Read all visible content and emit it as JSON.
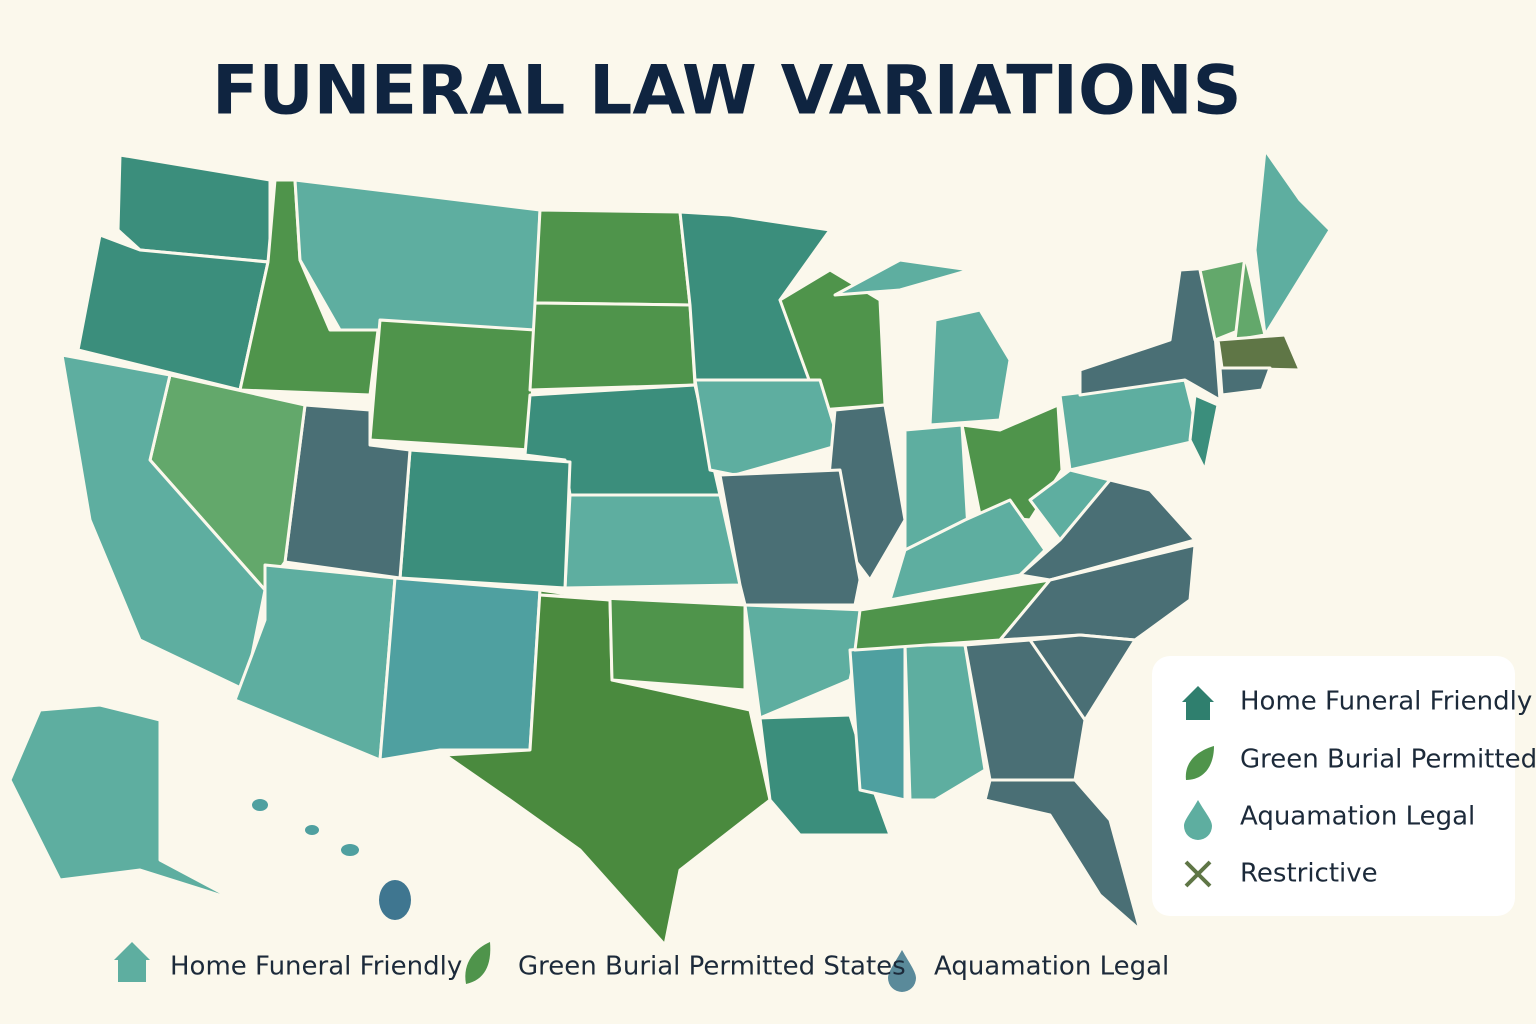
{
  "title": "FUNERAL LAW VARIATIONS",
  "legend": {
    "items": [
      "Home Funeral Friendly",
      "Green Burial Permitted",
      "Aquamation Legal",
      "Restrictive"
    ]
  },
  "bottom_legend": {
    "items": [
      "Home Funeral Friendly",
      "Green Burial Permitted States",
      "Aquamation Legal"
    ]
  }
}
